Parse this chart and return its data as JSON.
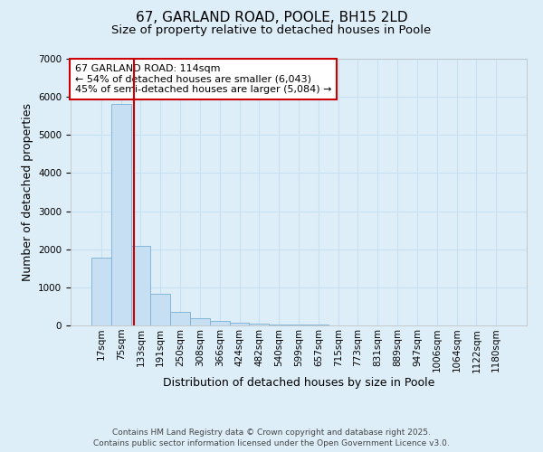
{
  "title": "67, GARLAND ROAD, POOLE, BH15 2LD",
  "subtitle": "Size of property relative to detached houses in Poole",
  "xlabel": "Distribution of detached houses by size in Poole",
  "ylabel": "Number of detached properties",
  "bin_labels": [
    "17sqm",
    "75sqm",
    "133sqm",
    "191sqm",
    "250sqm",
    "308sqm",
    "366sqm",
    "424sqm",
    "482sqm",
    "540sqm",
    "599sqm",
    "657sqm",
    "715sqm",
    "773sqm",
    "831sqm",
    "889sqm",
    "947sqm",
    "1006sqm",
    "1064sqm",
    "1122sqm",
    "1180sqm"
  ],
  "bar_values": [
    1780,
    5820,
    2080,
    830,
    350,
    200,
    115,
    75,
    55,
    35,
    25,
    12,
    6,
    5,
    4,
    3,
    2,
    2,
    2,
    2,
    2
  ],
  "bar_color": "#c6dff2",
  "bar_edge_color": "#7ab0d4",
  "vline_x": 1.68,
  "vline_color": "#cc0000",
  "annotation_text": "67 GARLAND ROAD: 114sqm\n← 54% of detached houses are smaller (6,043)\n45% of semi-detached houses are larger (5,084) →",
  "annotation_box_color": "#cc0000",
  "annotation_bg_color": "#ffffff",
  "ylim": [
    0,
    7000
  ],
  "grid_color": "#c8dff0",
  "bg_color": "#ddeef9",
  "footer_text": "Contains HM Land Registry data © Crown copyright and database right 2025.\nContains public sector information licensed under the Open Government Licence v3.0.",
  "title_fontsize": 11,
  "subtitle_fontsize": 9.5,
  "axis_label_fontsize": 9,
  "tick_fontsize": 7.5,
  "annot_fontsize": 8,
  "footer_fontsize": 6.5
}
